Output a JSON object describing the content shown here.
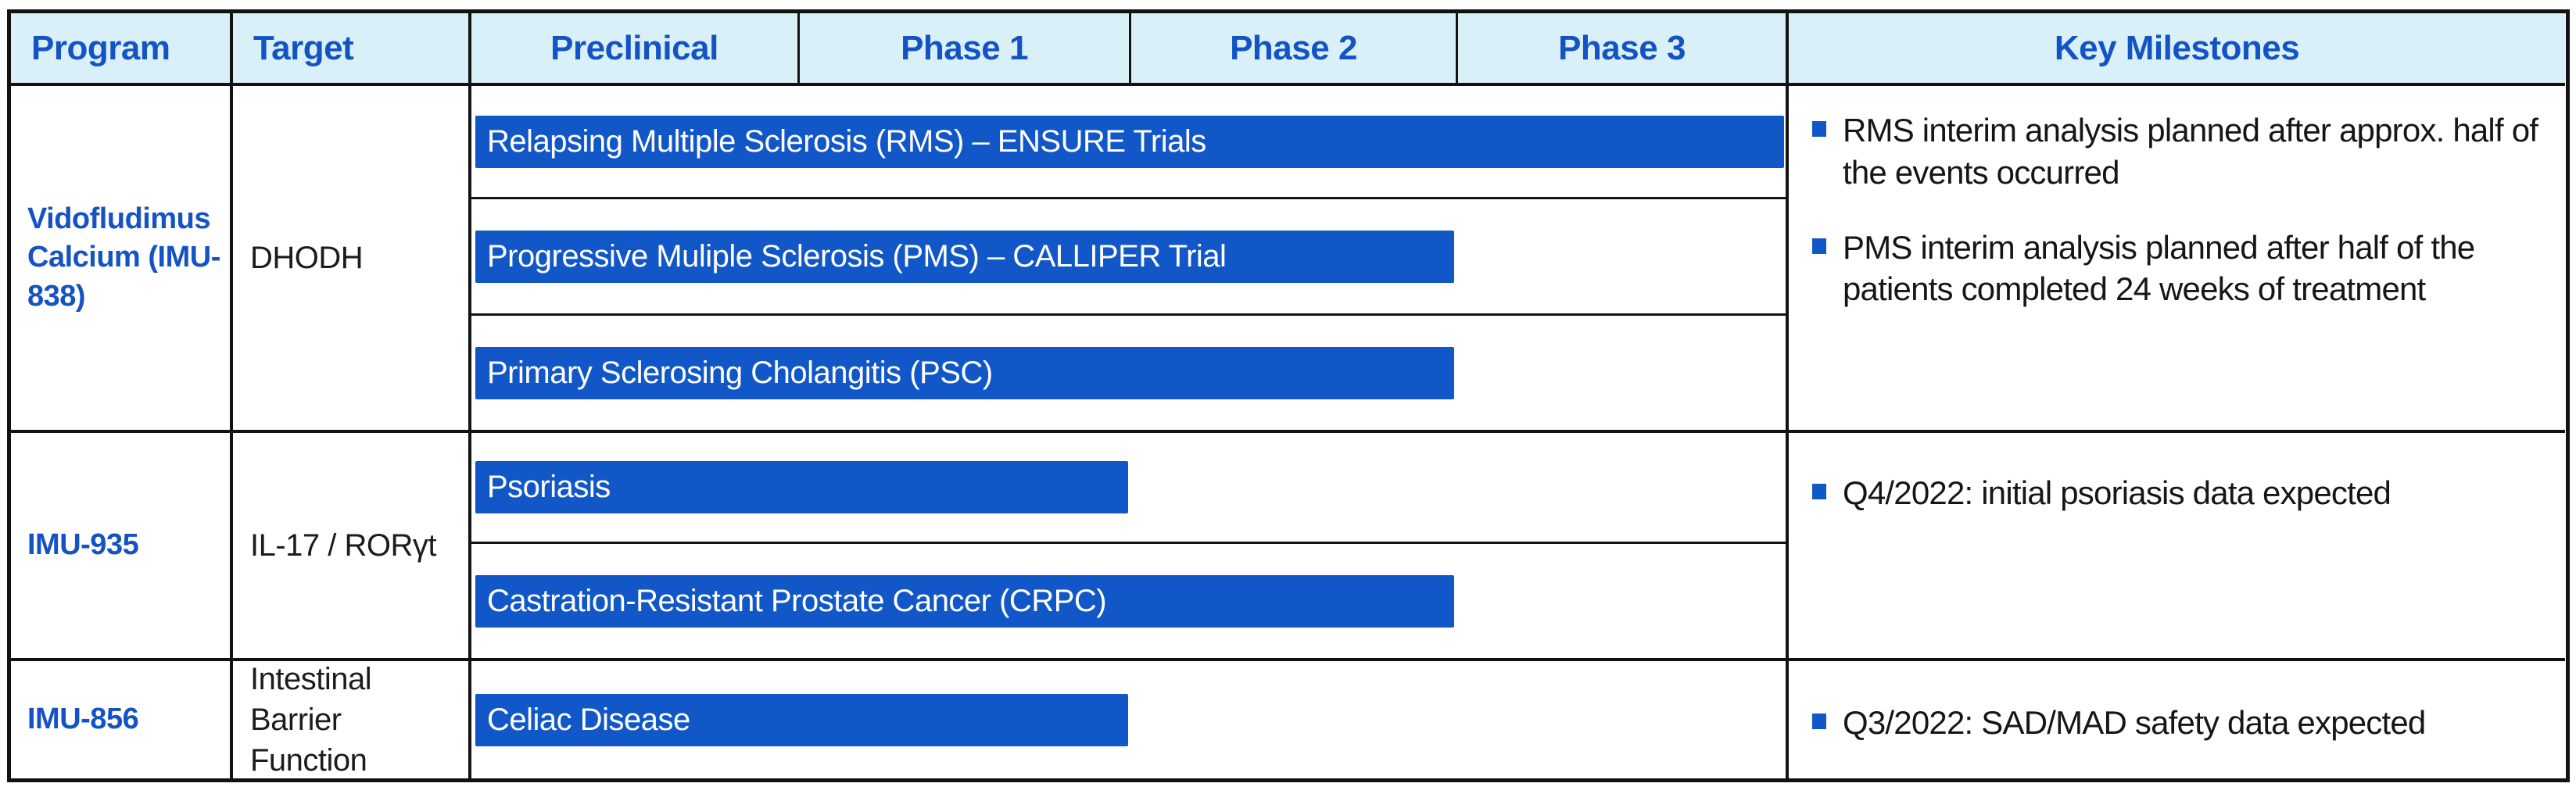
{
  "colors": {
    "bar_blue": "#1157C8",
    "header_fill": "#D9F0F9",
    "header_text_blue": "#1453C4",
    "program_text_blue": "#1453C4",
    "bar_text": "#FFFFFF",
    "body_text": "#1C1C1C",
    "border_black": "#121212",
    "bullet_blue": "#1157C8"
  },
  "chart_data": {
    "type": "table",
    "subtype": "clinical-pipeline-gantt",
    "columns": [
      "Program",
      "Target",
      "Preclinical",
      "Phase 1",
      "Phase 2",
      "Phase 3",
      "Key Milestones"
    ],
    "phases": [
      "Preclinical",
      "Phase 1",
      "Phase 2",
      "Phase 3"
    ],
    "programs": [
      {
        "program": "Vidofludimus Calcium (IMU-838)",
        "target": "DHODH",
        "bars": [
          {
            "label": "Relapsing Multiple Sclerosis (RMS) – ENSURE Trials",
            "through_phase": "Phase 3",
            "width_pct": 99.6
          },
          {
            "label": "Progressive Muliple Sclerosis (PMS) – CALLIPER Trial",
            "through_phase": "Phase 2",
            "width_pct": 74.5
          },
          {
            "label": "Primary Sclerosing Cholangitis (PSC)",
            "through_phase": "Phase 2",
            "width_pct": 74.5
          }
        ],
        "milestones": [
          "RMS interim analysis planned after approx. half of the events occurred",
          "PMS interim analysis planned after half of the patients completed 24 weeks of treatment"
        ]
      },
      {
        "program": "IMU-935",
        "target": "IL-17 / RORγt",
        "bars": [
          {
            "label": "Psoriasis",
            "through_phase": "Phase 1",
            "width_pct": 49.7
          },
          {
            "label": "Castration-Resistant Prostate Cancer (CRPC)",
            "through_phase": "Phase 2",
            "width_pct": 74.5
          }
        ],
        "milestones": [
          "Q4/2022: initial psoriasis data expected"
        ]
      },
      {
        "program": "IMU-856",
        "target": "Intestinal Barrier Function",
        "bars": [
          {
            "label": "Celiac Disease",
            "through_phase": "Phase 1",
            "width_pct": 49.7
          }
        ],
        "milestones": [
          "Q3/2022: SAD/MAD safety data expected"
        ]
      }
    ]
  }
}
